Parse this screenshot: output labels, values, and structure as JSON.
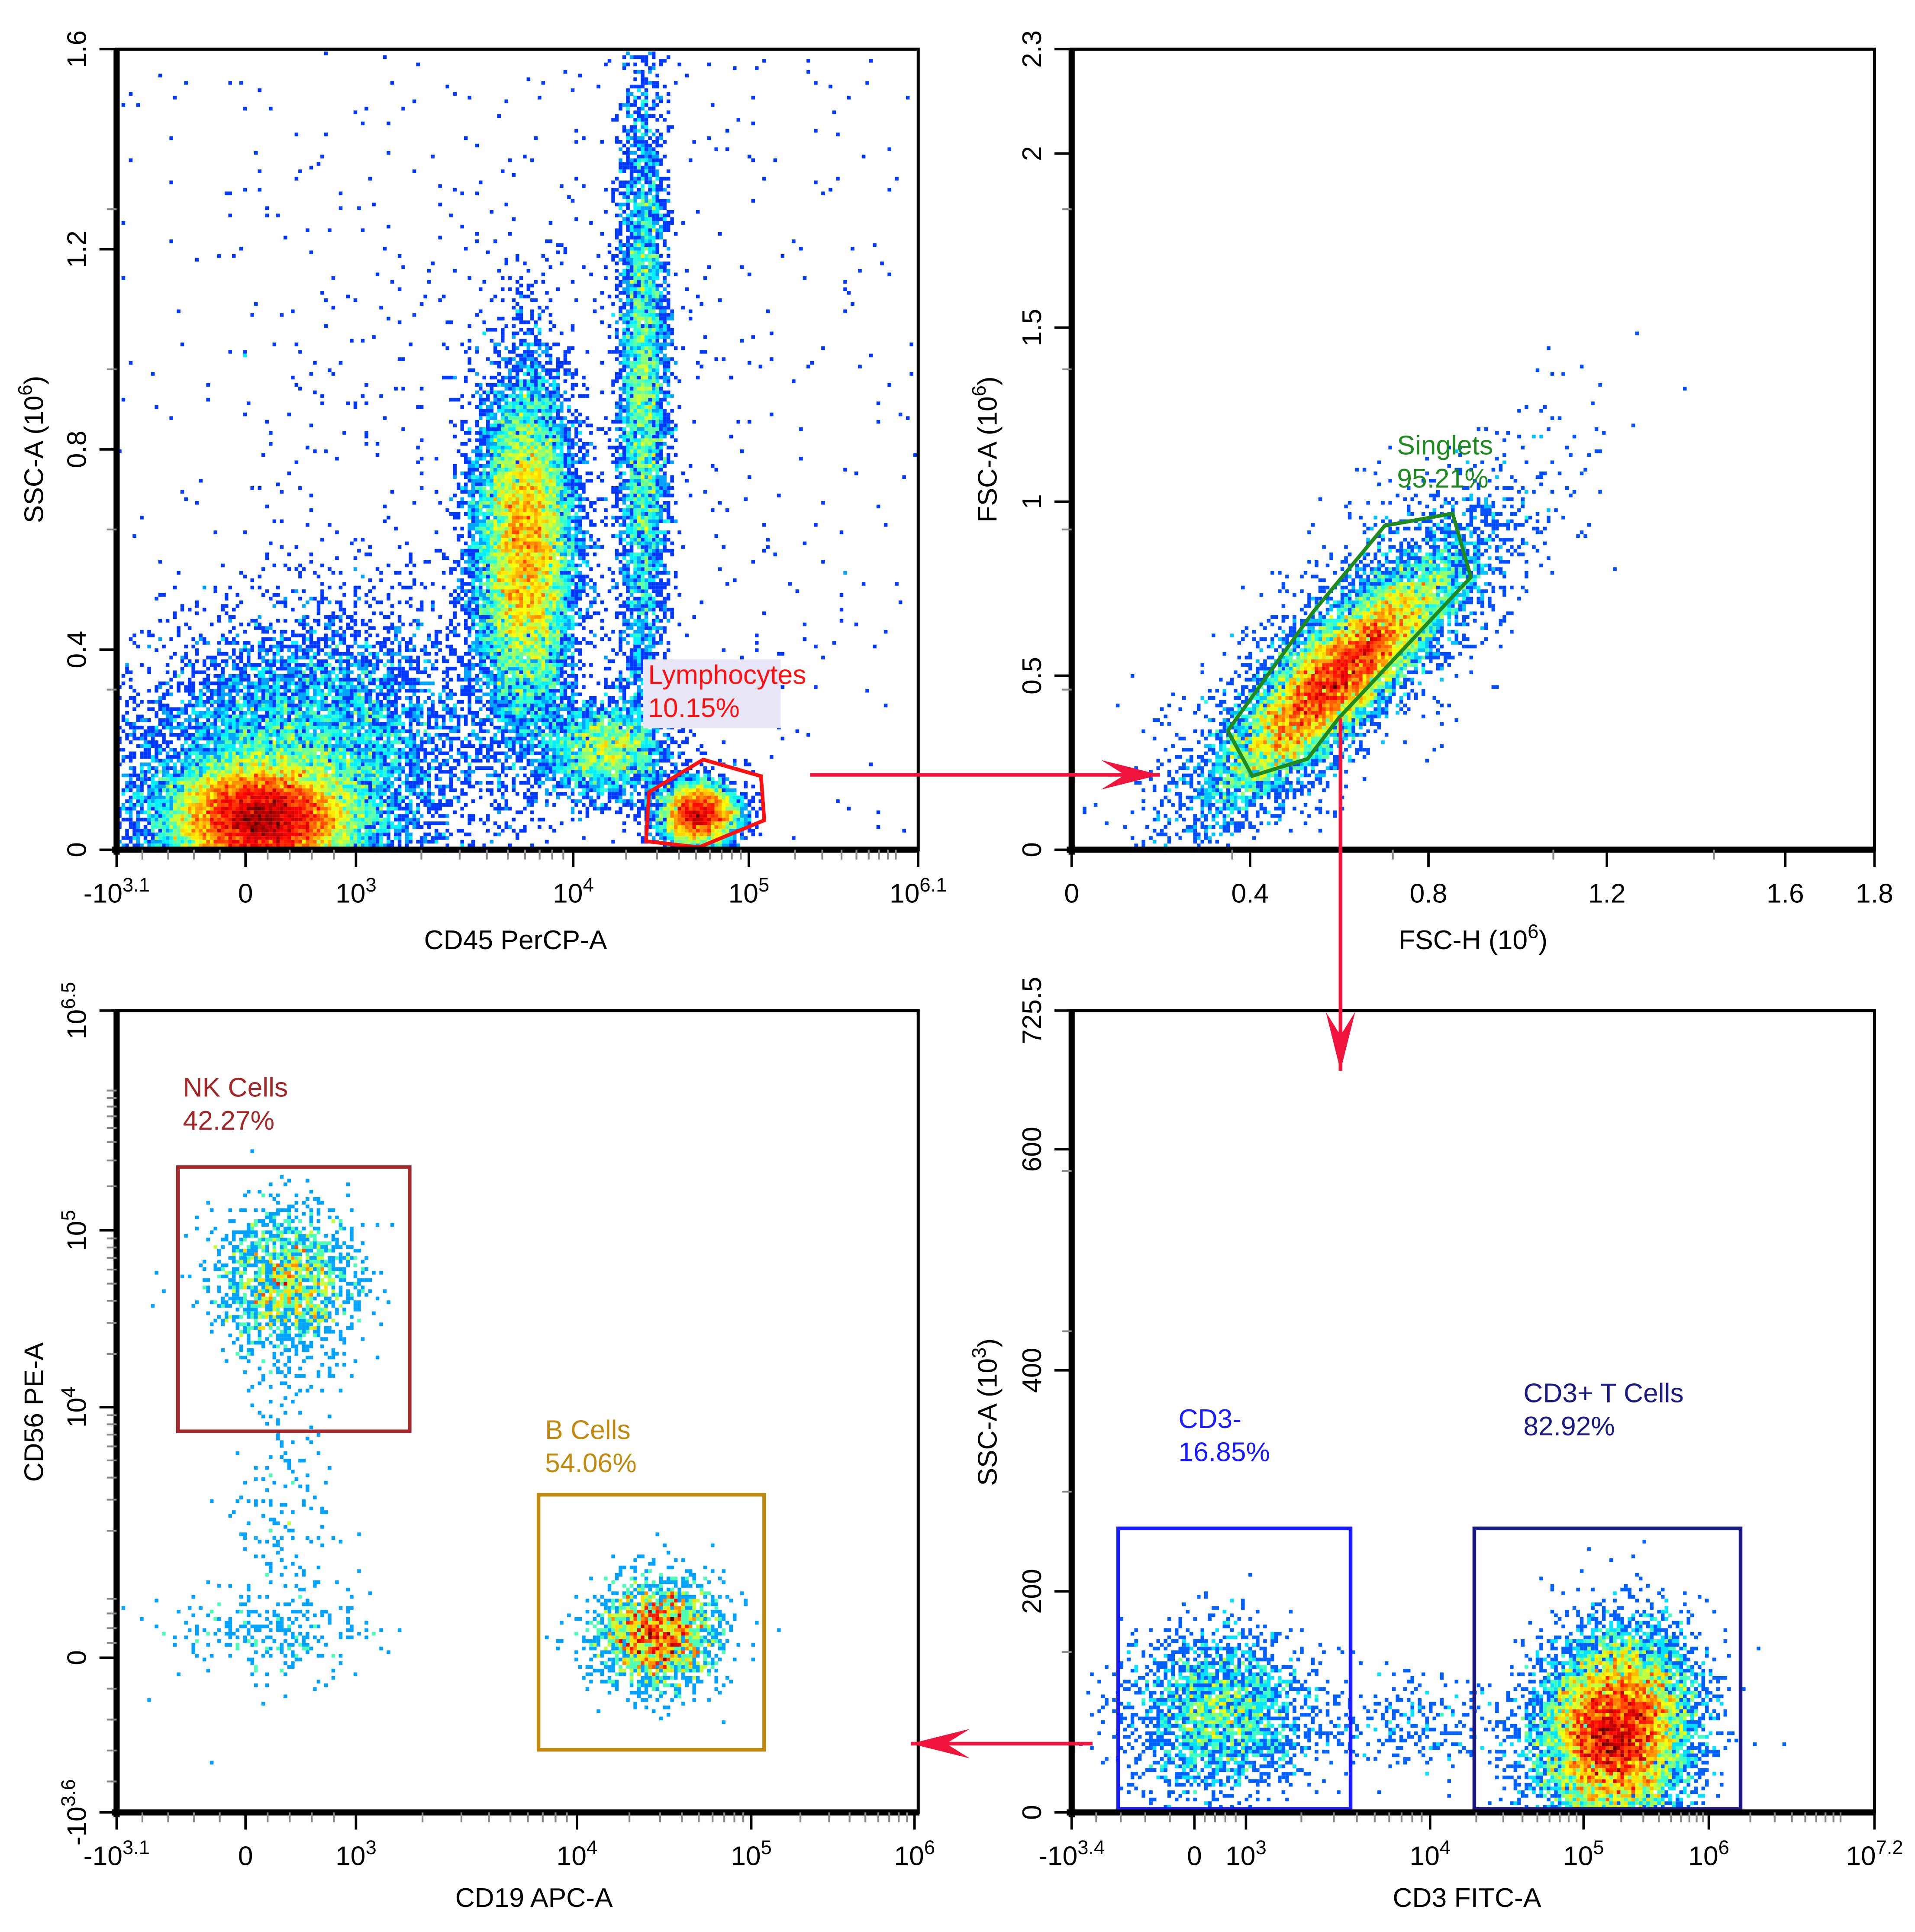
{
  "figure": {
    "arrow_color": "#f0143c"
  },
  "chart_data": [
    {
      "type": "scatter",
      "subtype": "density-dot-plot",
      "title": "",
      "x_scale": "biexponential",
      "y_scale": "linear",
      "xlabel": {
        "text": "CD45 PerCP-A",
        "exp": "",
        "suffix": ""
      },
      "ylabel": {
        "text": "SSC-A  (10",
        "exp": "6",
        "suffix": ")"
      },
      "xlim": [
        -1259,
        1258925
      ],
      "ylim": [
        0,
        1.6
      ],
      "xticks": [
        {
          "value": -1259,
          "base": "-10",
          "exp": "3.1"
        },
        {
          "value": 0,
          "base": "0",
          "exp": ""
        },
        {
          "value": 1000,
          "base": "10",
          "exp": "3"
        },
        {
          "value": 10000,
          "base": "10",
          "exp": "4"
        },
        {
          "value": 100000,
          "base": "10",
          "exp": "5"
        },
        {
          "value": 1258925,
          "base": "10",
          "exp": "6.1"
        }
      ],
      "yticks": [
        {
          "value": 0,
          "base": "0",
          "exp": ""
        },
        {
          "value": 0.4,
          "base": "0.4",
          "exp": ""
        },
        {
          "value": 0.8,
          "base": "0.8",
          "exp": ""
        },
        {
          "value": 1.2,
          "base": "1.2",
          "exp": ""
        },
        {
          "value": 1.6,
          "base": "1.6",
          "exp": ""
        }
      ],
      "populations": [
        {
          "x": 150,
          "y": 0.06,
          "weight": 30
        },
        {
          "x": 400,
          "y": 0.15,
          "weight": 18
        },
        {
          "x": 6000,
          "y": 0.6,
          "weight": 22
        },
        {
          "x": 25000,
          "y": 0.9,
          "weight": 8
        },
        {
          "x": 52000,
          "y": 0.07,
          "weight": 7
        },
        {
          "x": 15000,
          "y": 0.2,
          "weight": 4
        },
        {
          "x": 6000,
          "y": 0.8,
          "weight": 2
        }
      ],
      "gates": [
        {
          "name": "Lymphocytes",
          "percent": "10.15%",
          "color": "#ff1010",
          "label_bg": "#e6e6f6",
          "vertices": [
            [
              26000,
              0.017
            ],
            [
              52000,
              0.005
            ],
            [
              126000,
              0.059
            ],
            [
              120000,
              0.147
            ],
            [
              55000,
              0.18
            ],
            [
              27000,
              0.115
            ]
          ]
        }
      ]
    },
    {
      "type": "scatter",
      "subtype": "density-dot-plot",
      "title": "",
      "x_scale": "linear",
      "y_scale": "linear",
      "xlabel": {
        "text": "FSC-H  (10",
        "exp": "6",
        "suffix": ")"
      },
      "ylabel": {
        "text": "FSC-A  (10",
        "exp": "6",
        "suffix": ")"
      },
      "xlim": [
        0,
        1.8
      ],
      "ylim": [
        0,
        2.3
      ],
      "xticks": [
        {
          "value": 0,
          "base": "0",
          "exp": ""
        },
        {
          "value": 0.4,
          "base": "0.4",
          "exp": ""
        },
        {
          "value": 0.8,
          "base": "0.8",
          "exp": ""
        },
        {
          "value": 1.2,
          "base": "1.2",
          "exp": ""
        },
        {
          "value": 1.6,
          "base": "1.6",
          "exp": ""
        },
        {
          "value": 1.8,
          "base": "1.8",
          "exp": ""
        }
      ],
      "yticks": [
        {
          "value": 0,
          "base": "0",
          "exp": ""
        },
        {
          "value": 0.5,
          "base": "0.5",
          "exp": ""
        },
        {
          "value": 1,
          "base": "1",
          "exp": ""
        },
        {
          "value": 1.5,
          "base": "1.5",
          "exp": ""
        },
        {
          "value": 2,
          "base": "2",
          "exp": ""
        },
        {
          "value": 2.3,
          "base": "2.3",
          "exp": ""
        }
      ],
      "populations": [
        {
          "x": 0.6,
          "y": 0.5,
          "weight": 20
        },
        {
          "x": 0.62,
          "y": 0.56,
          "weight": 4
        }
      ],
      "gates": [
        {
          "name": "Singlets",
          "percent": "95.21%",
          "color": "#1f8a1f",
          "label_bg": "",
          "vertices": [
            [
              0.35,
              0.342
            ],
            [
              0.405,
              0.212
            ],
            [
              0.529,
              0.261
            ],
            [
              0.598,
              0.377
            ],
            [
              0.895,
              0.783
            ],
            [
              0.854,
              0.966
            ],
            [
              0.702,
              0.931
            ],
            [
              0.542,
              0.684
            ]
          ]
        }
      ]
    },
    {
      "type": "scatter",
      "subtype": "density-dot-plot",
      "title": "",
      "x_scale": "biexponential",
      "y_scale": "biexponential",
      "xlabel": {
        "text": "CD19 APC-A",
        "exp": "",
        "suffix": ""
      },
      "ylabel": {
        "text": "CD56 PE-A",
        "exp": "",
        "suffix": ""
      },
      "xlim": [
        -1259,
        1000000
      ],
      "ylim": [
        -3981,
        3162278
      ],
      "xticks": [
        {
          "value": -1259,
          "base": "-10",
          "exp": "3.1"
        },
        {
          "value": 0,
          "base": "0",
          "exp": ""
        },
        {
          "value": 1000,
          "base": "10",
          "exp": "3"
        },
        {
          "value": 10000,
          "base": "10",
          "exp": "4"
        },
        {
          "value": 100000,
          "base": "10",
          "exp": "5"
        },
        {
          "value": 1000000,
          "base": "10",
          "exp": "6"
        }
      ],
      "yticks": [
        {
          "value": -3981,
          "base": "-10",
          "exp": "3.6"
        },
        {
          "value": 0,
          "base": "0",
          "exp": ""
        },
        {
          "value": 10000,
          "base": "10",
          "exp": "4"
        },
        {
          "value": 100000,
          "base": "10",
          "exp": "5"
        },
        {
          "value": 3162278,
          "base": "10",
          "exp": "6.5"
        }
      ],
      "populations": [
        {
          "x": 390,
          "y": 50000,
          "weight": 40
        },
        {
          "x": 29000,
          "y": 330,
          "weight": 55
        },
        {
          "x": 250,
          "y": 330,
          "weight": 6
        },
        {
          "x": 350,
          "y": 3000,
          "weight": 4
        }
      ],
      "gates": [
        {
          "name": "NK Cells",
          "percent": "42.27%",
          "color": "#a0282a",
          "label_bg": "",
          "vertices": [
            [
              -660,
              270000
            ],
            [
              1750,
              270000
            ],
            [
              1750,
              7300
            ],
            [
              -660,
              7300
            ]
          ]
        },
        {
          "name": "B Cells",
          "percent": "54.06%",
          "color": "#c08a10",
          "label_bg": "",
          "vertices": [
            [
              6700,
              3200
            ],
            [
              120000,
              3200
            ],
            [
              120000,
              -2370
            ],
            [
              6700,
              -2370
            ]
          ]
        }
      ]
    },
    {
      "type": "scatter",
      "subtype": "density-dot-plot",
      "title": "",
      "x_scale": "biexponential",
      "y_scale": "linear",
      "xlabel": {
        "text": "CD3 FITC-A",
        "exp": "",
        "suffix": ""
      },
      "ylabel": {
        "text": "SSC-A  (10",
        "exp": "3",
        "suffix": ")"
      },
      "xlim": [
        -2512,
        15848932
      ],
      "ylim": [
        0,
        725.5
      ],
      "xticks": [
        {
          "value": -2512,
          "base": "-10",
          "exp": "3.4"
        },
        {
          "value": 0,
          "base": "0",
          "exp": ""
        },
        {
          "value": 1000,
          "base": "10",
          "exp": "3"
        },
        {
          "value": 10000,
          "base": "10",
          "exp": "4"
        },
        {
          "value": 100000,
          "base": "10",
          "exp": "5"
        },
        {
          "value": 1000000,
          "base": "10",
          "exp": "6"
        },
        {
          "value": 15848932,
          "base": "10",
          "exp": "7.2"
        }
      ],
      "yticks": [
        {
          "value": 0,
          "base": "0",
          "exp": ""
        },
        {
          "value": 200,
          "base": "200",
          "exp": ""
        },
        {
          "value": 400,
          "base": "400",
          "exp": ""
        },
        {
          "value": 600,
          "base": "600",
          "exp": ""
        },
        {
          "value": 725.5,
          "base": "725.5",
          "exp": ""
        }
      ],
      "populations": [
        {
          "x": 520,
          "y": 90,
          "weight": 17
        },
        {
          "x": 178000,
          "y": 73,
          "weight": 83
        },
        {
          "x": 8000,
          "y": 80,
          "weight": 2
        }
      ],
      "gates": [
        {
          "name": "CD3-",
          "percent": "16.85%",
          "color": "#1a1aff",
          "label_bg": "",
          "vertices": [
            [
              -1560,
              257
            ],
            [
              3700,
              257
            ],
            [
              3700,
              3
            ],
            [
              -1560,
              3
            ]
          ]
        },
        {
          "name": "CD3+ T Cells",
          "percent": "82.92%",
          "color": "#1a1a80",
          "label_bg": "",
          "vertices": [
            [
              19400,
              257
            ],
            [
              1700000,
              257
            ],
            [
              1700000,
              3
            ],
            [
              19400,
              3
            ]
          ]
        }
      ]
    }
  ]
}
